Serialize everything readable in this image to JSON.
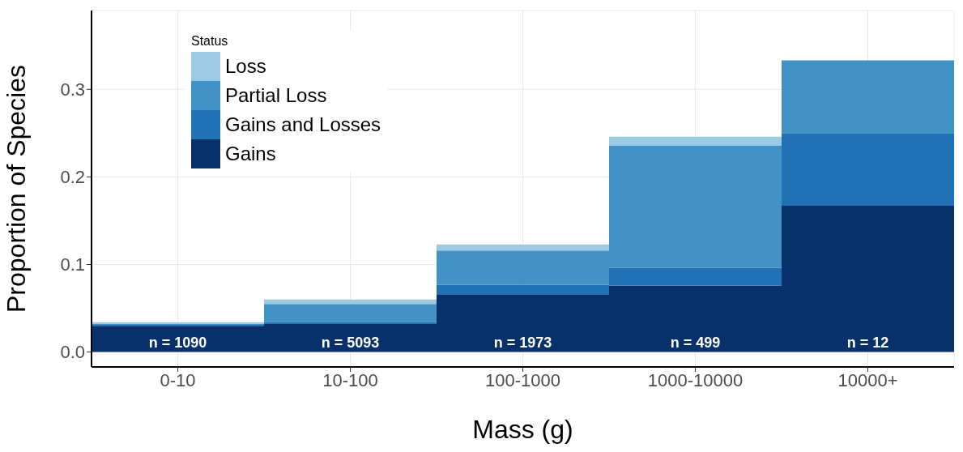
{
  "chart_data": {
    "type": "bar",
    "stacked": true,
    "xlabel": "Mass (g)",
    "ylabel": "Proportion of Species",
    "legend_title": "Status",
    "legend": "top left",
    "grid": true,
    "categories": [
      "0-10",
      "10-100",
      "100-1000",
      "1000-10000",
      "10000+"
    ],
    "series": [
      {
        "name": "Gains",
        "color": "#08306b",
        "values": [
          0.03,
          0.032,
          0.066,
          0.076,
          0.167
        ]
      },
      {
        "name": "Gains and Losses",
        "color": "#2171b5",
        "values": [
          0.001,
          0.002,
          0.011,
          0.02,
          0.083
        ]
      },
      {
        "name": "Partial Loss",
        "color": "#4292c6",
        "values": [
          0.001,
          0.021,
          0.039,
          0.14,
          0.083
        ]
      },
      {
        "name": "Loss",
        "color": "#9ecae1",
        "values": [
          0.002,
          0.005,
          0.007,
          0.01,
          0
        ]
      }
    ],
    "ylim": [
      -0.017,
      0.39
    ],
    "yticks": [
      {
        "value": 0,
        "label": "0.0"
      },
      {
        "value": 0.1,
        "label": "0.1"
      },
      {
        "value": 0.2,
        "label": "0.2"
      },
      {
        "value": 0.3,
        "label": "0.3"
      }
    ],
    "annotations": [
      "n = 1090",
      "n = 5093",
      "n = 1973",
      "n = 499",
      "n = 12"
    ]
  }
}
